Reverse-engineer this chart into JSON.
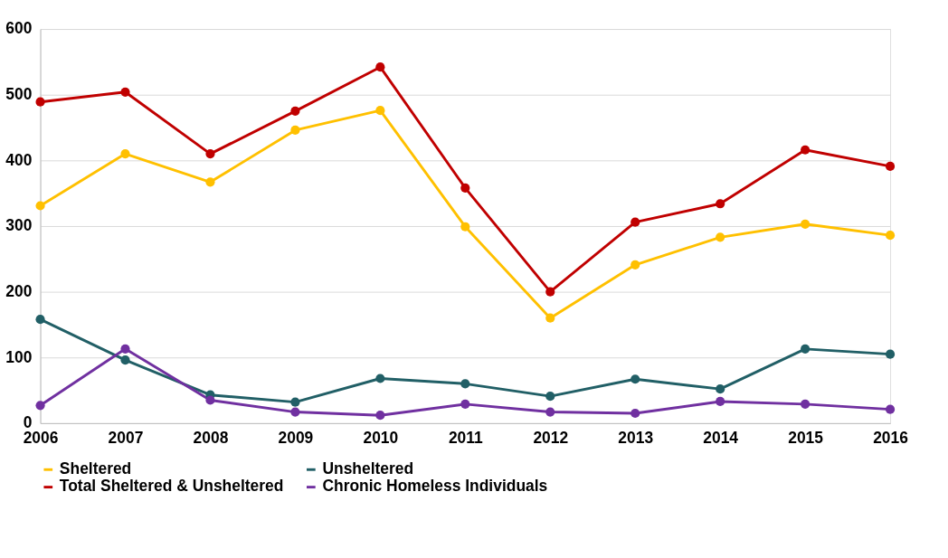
{
  "chart_data": {
    "type": "line",
    "categories": [
      "2006",
      "2007",
      "2008",
      "2009",
      "2010",
      "2011",
      "2012",
      "2013",
      "2014",
      "2015",
      "2016"
    ],
    "series": [
      {
        "name": "Sheltered",
        "color": "#ffc000",
        "values": [
          331,
          410,
          367,
          446,
          476,
          299,
          160,
          241,
          283,
          303,
          286
        ]
      },
      {
        "name": "Unsheltered",
        "color": "#215f66",
        "values": [
          158,
          96,
          43,
          32,
          68,
          60,
          41,
          67,
          52,
          113,
          105
        ]
      },
      {
        "name": "Total Sheltered & Unsheltered",
        "color": "#c00000",
        "values": [
          489,
          504,
          410,
          475,
          542,
          358,
          200,
          306,
          334,
          416,
          391
        ]
      },
      {
        "name": "Chronic Homeless Individuals",
        "color": "#7030a0",
        "values": [
          27,
          113,
          35,
          17,
          12,
          29,
          17,
          15,
          33,
          29,
          21
        ]
      }
    ],
    "ylim": [
      0,
      600
    ],
    "yticks": [
      0,
      100,
      200,
      300,
      400,
      500,
      600
    ],
    "grid": "y",
    "legend": "bottom",
    "marker": "circle",
    "line_style": "solid"
  }
}
